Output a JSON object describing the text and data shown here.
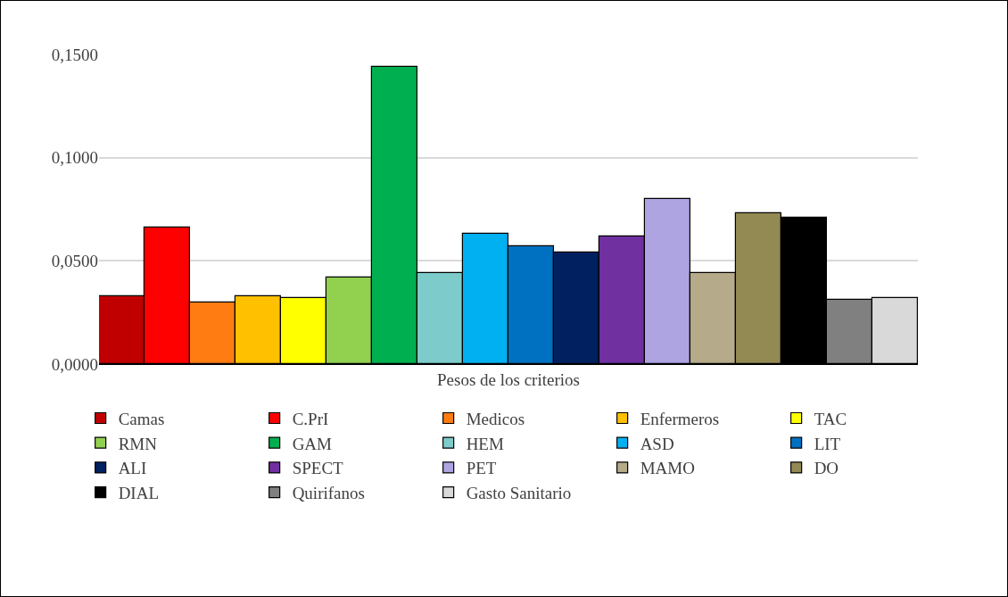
{
  "chart_data": {
    "type": "bar",
    "categories": [
      "Pesos de los criterios"
    ],
    "series": [
      {
        "name": "Camas",
        "color": "#c00000",
        "values": [
          0.033
        ]
      },
      {
        "name": "C.PrI",
        "color": "#ff0000",
        "values": [
          0.066
        ]
      },
      {
        "name": "Medicos",
        "color": "#ff7c12",
        "values": [
          0.03
        ]
      },
      {
        "name": "Enfermeros",
        "color": "#ffc000",
        "values": [
          0.033
        ]
      },
      {
        "name": "TAC",
        "color": "#ffff00",
        "values": [
          0.032
        ]
      },
      {
        "name": "RMN",
        "color": "#92d050",
        "values": [
          0.042
        ]
      },
      {
        "name": "GAM",
        "color": "#00b050",
        "values": [
          0.144
        ]
      },
      {
        "name": "HEM",
        "color": "#7ecbcb",
        "values": [
          0.044
        ]
      },
      {
        "name": "ASD",
        "color": "#00b0f0",
        "values": [
          0.063
        ]
      },
      {
        "name": "LIT",
        "color": "#0070c0",
        "values": [
          0.057
        ]
      },
      {
        "name": "ALI",
        "color": "#002060",
        "values": [
          0.054
        ]
      },
      {
        "name": "SPECT",
        "color": "#7030a0",
        "values": [
          0.062
        ]
      },
      {
        "name": "PET",
        "color": "#aea4e2",
        "values": [
          0.08
        ]
      },
      {
        "name": "MAMO",
        "color": "#b5aa89",
        "values": [
          0.044
        ]
      },
      {
        "name": "DO",
        "color": "#938953",
        "values": [
          0.073
        ]
      },
      {
        "name": "DIAL",
        "color": "#000000",
        "values": [
          0.071
        ]
      },
      {
        "name": "Quirifanos",
        "color": "#808080",
        "values": [
          0.031
        ]
      },
      {
        "name": "Gasto Sanitario",
        "color": "#d9d9d9",
        "values": [
          0.032
        ]
      }
    ],
    "ylim": [
      0,
      0.15
    ],
    "yticks": [
      {
        "value": 0,
        "label": "0,0000"
      },
      {
        "value": 0.05,
        "label": "0,0500"
      },
      {
        "value": 0.1,
        "label": "0,1000"
      },
      {
        "value": 0.15,
        "label": "0,1500"
      }
    ],
    "grid": "y",
    "legend": "bottom"
  }
}
